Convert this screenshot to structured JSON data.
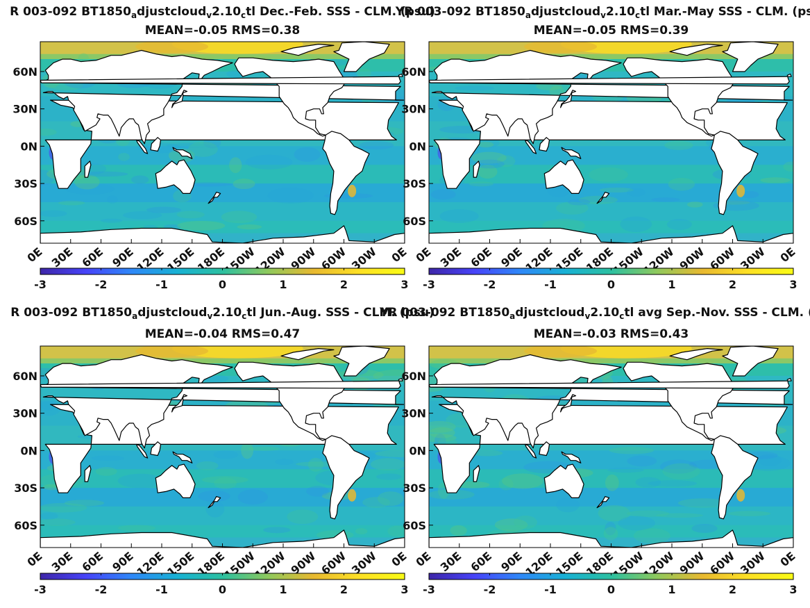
{
  "colors": {
    "colormap": [
      "#3e26a8",
      "#4743f8",
      "#2f88f8",
      "#18b1d4",
      "#2cc0a0",
      "#8ec95d",
      "#e8b930",
      "#fde025",
      "#f9fb15"
    ],
    "ocean_base": "#2cb5c9",
    "land": "#ffffff",
    "frame": "#000000"
  },
  "chart_data": [
    {
      "type": "heatmap",
      "title": "R 003-092 BT1850",
      "title_parts": [
        {
          "t": "R 003-092 BT1850"
        },
        {
          "t": "a",
          "sub": true
        },
        {
          "t": "djustcloud"
        },
        {
          "t": "v",
          "sub": true
        },
        {
          "t": "2.10"
        },
        {
          "t": "c",
          "sub": true
        },
        {
          "t": "tl  Dec.-Feb. SSS - CLM. (psu)"
        }
      ],
      "subtitle": "MEAN=-0.05   RMS=0.38",
      "mean": -0.05,
      "rms": 0.38,
      "season": "Dec.-Feb.",
      "yticks": [
        "60N",
        "30N",
        "0N",
        "30S",
        "60S"
      ],
      "xticks": [
        "0E",
        "30E",
        "60E",
        "90E",
        "120E",
        "150E",
        "180E",
        "150W",
        "120W",
        "90W",
        "60W",
        "30W",
        "0E"
      ],
      "colorbar_ticks": [
        "-3",
        "-2",
        "-1",
        "0",
        "1",
        "2",
        "3"
      ],
      "clim": [
        -3,
        3
      ]
    },
    {
      "type": "heatmap",
      "title": "YR 003-092 BT1850",
      "title_parts": [
        {
          "t": "YR 003-092 BT1850"
        },
        {
          "t": "a",
          "sub": true
        },
        {
          "t": "djustcloud"
        },
        {
          "t": "v",
          "sub": true
        },
        {
          "t": "2.10"
        },
        {
          "t": "c",
          "sub": true
        },
        {
          "t": "tl Mar.-May SSS - CLM. (psu)"
        }
      ],
      "subtitle": "MEAN=-0.05   RMS=0.39",
      "mean": -0.05,
      "rms": 0.39,
      "season": "Mar.-May",
      "yticks": [
        "60N",
        "30N",
        "0N",
        "30S",
        "60S"
      ],
      "xticks": [
        "0E",
        "30E",
        "60E",
        "90E",
        "120E",
        "150E",
        "180E",
        "150W",
        "120W",
        "90W",
        "60W",
        "30W",
        "0E"
      ],
      "colorbar_ticks": [
        "-3",
        "-2",
        "-1",
        "0",
        "1",
        "2",
        "3"
      ],
      "clim": [
        -3,
        3
      ]
    },
    {
      "type": "heatmap",
      "title": "R 003-092 BT1850",
      "title_parts": [
        {
          "t": "R 003-092 BT1850"
        },
        {
          "t": "a",
          "sub": true
        },
        {
          "t": "djustcloud"
        },
        {
          "t": "v",
          "sub": true
        },
        {
          "t": "2.10"
        },
        {
          "t": "c",
          "sub": true
        },
        {
          "t": "tl Jun.-Aug. SSS - CLM. (psu)"
        }
      ],
      "subtitle": "MEAN=-0.04   RMS=0.47",
      "mean": -0.04,
      "rms": 0.47,
      "season": "Jun.-Aug.",
      "yticks": [
        "60N",
        "30N",
        "0N",
        "30S",
        "60S"
      ],
      "xticks": [
        "0E",
        "30E",
        "60E",
        "90E",
        "120E",
        "150E",
        "180E",
        "150W",
        "120W",
        "90W",
        "60W",
        "30W",
        "0E"
      ],
      "colorbar_ticks": [
        "-3",
        "-2",
        "-1",
        "0",
        "1",
        "2",
        "3"
      ],
      "clim": [
        -3,
        3
      ]
    },
    {
      "type": "heatmap",
      "title": "YR 003-092 BT1850",
      "title_parts": [
        {
          "t": "YR 003-092 BT1850"
        },
        {
          "t": "a",
          "sub": true
        },
        {
          "t": "djustcloud"
        },
        {
          "t": "v",
          "sub": true
        },
        {
          "t": "2.10"
        },
        {
          "t": "c",
          "sub": true
        },
        {
          "t": "tl avg Sep.-Nov. SSS - CLM. (psu)"
        }
      ],
      "subtitle": "MEAN=-0.03   RMS=0.43",
      "mean": -0.03,
      "rms": 0.43,
      "season": "Sep.-Nov.",
      "yticks": [
        "60N",
        "30N",
        "0N",
        "30S",
        "60S"
      ],
      "xticks": [
        "0E",
        "30E",
        "60E",
        "90E",
        "120E",
        "150E",
        "180E",
        "150W",
        "120W",
        "90W",
        "60W",
        "30W",
        "0E"
      ],
      "colorbar_ticks": [
        "-3",
        "-2",
        "-1",
        "0",
        "1",
        "2",
        "3"
      ],
      "clim": [
        -3,
        3
      ]
    }
  ]
}
